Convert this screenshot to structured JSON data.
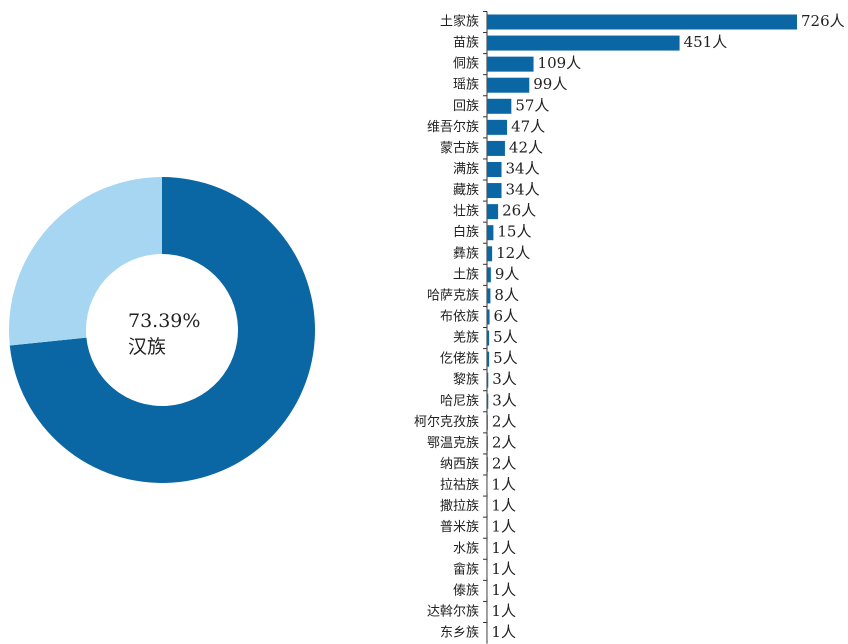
{
  "chart_data": [
    {
      "type": "donut",
      "categories": [
        "汉族",
        null
      ],
      "values": [
        73.39,
        26.61
      ],
      "value_labels": [
        "73.39%",
        null
      ],
      "colors": [
        "#0a67a3",
        "#a7d6f2"
      ]
    },
    {
      "type": "hbar",
      "categories": [
        "土家族",
        "苗族",
        "侗族",
        "瑶族",
        "回族",
        "维吾尔族",
        "蒙古族",
        "满族",
        "藏族",
        "壮族",
        "白族",
        "彝族",
        "土族",
        "哈萨克族",
        "布依族",
        "羌族",
        "仡佬族",
        "黎族",
        "哈尼族",
        "柯尔克孜族",
        "鄂温克族",
        "纳西族",
        "拉祜族",
        "撒拉族",
        "普米族",
        "水族",
        "畲族",
        "傣族",
        "达斡尔族",
        "东乡族"
      ],
      "values": [
        726,
        451,
        109,
        99,
        57,
        47,
        42,
        34,
        34,
        26,
        15,
        12,
        9,
        8,
        6,
        5,
        5,
        3,
        3,
        2,
        2,
        2,
        1,
        1,
        1,
        1,
        1,
        1,
        1,
        1
      ],
      "value_labels": [
        "726人",
        "451人",
        "109人",
        "99人",
        "57人",
        "47人",
        "42人",
        "34人",
        "34人",
        "26人",
        "15人",
        "12人",
        "9人",
        "8人",
        "6人",
        "5人",
        "5人",
        "3人",
        "3人",
        "2人",
        "2人",
        "2人",
        "1人",
        "1人",
        "1人",
        "1人",
        "1人",
        "1人",
        "1人",
        "1人"
      ],
      "color": "#0a67a3"
    }
  ]
}
